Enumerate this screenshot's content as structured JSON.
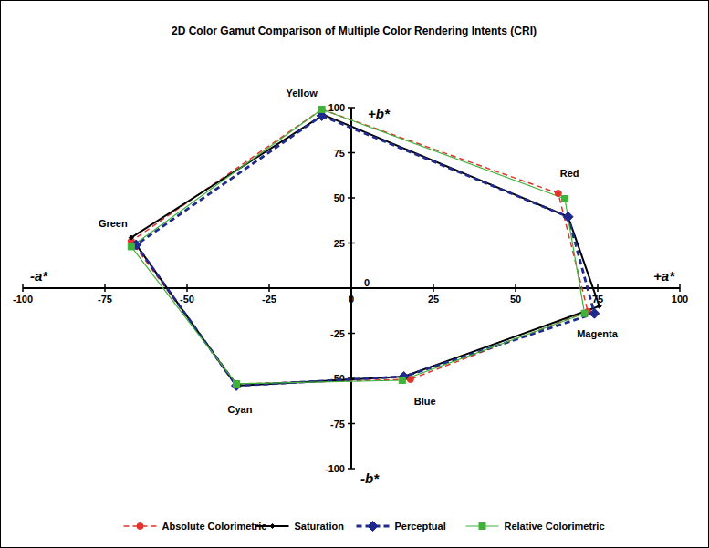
{
  "chart_data": {
    "type": "polygon",
    "title": "2D Color Gamut Comparison of Multiple Color Rendering Intents (CRI)",
    "x_label_negative": "-a*",
    "x_label_positive": "+a*",
    "y_label_positive": "+b*",
    "y_label_negative": "-b*",
    "categories": [
      "Yellow",
      "Red",
      "Magenta",
      "Blue",
      "Cyan",
      "Green"
    ],
    "series": [
      {
        "name": "Absolute Colorimetric",
        "color": "#e0342c",
        "marker": "circle",
        "line_style": "dashed",
        "x": [
          -9,
          63,
          72,
          18,
          -35,
          -67
        ],
        "values": [
          99,
          52.5,
          -13,
          -50.5,
          -53,
          26
        ]
      },
      {
        "name": "Saturation",
        "color": "#000000",
        "marker": "diamond",
        "line_style": "solid",
        "x": [
          -8.5,
          66,
          75.5,
          16,
          -35,
          -67
        ],
        "values": [
          96,
          39.5,
          -10,
          -49,
          -54,
          28
        ]
      },
      {
        "name": "Perceptual",
        "color": "#1f2a8c",
        "marker": "diamond",
        "line_style": "dashed",
        "x": [
          -9,
          66,
          74,
          16,
          -35,
          -65.5
        ],
        "values": [
          95.5,
          39.5,
          -14,
          -49,
          -54,
          24
        ]
      },
      {
        "name": "Relative Colorimetric",
        "color": "#3fb23a",
        "marker": "square",
        "line_style": "solid",
        "x": [
          -9,
          65,
          71,
          15.5,
          -35,
          -67
        ],
        "values": [
          99,
          49.5,
          -14,
          -51,
          -53,
          23
        ]
      }
    ],
    "xlim": [
      -100,
      100
    ],
    "ylim": [
      -100,
      100
    ],
    "xticks": [
      -100,
      -75,
      -50,
      -25,
      0,
      25,
      50,
      75,
      100
    ],
    "yticks": [
      -100,
      -75,
      -50,
      -25,
      0,
      25,
      50,
      75,
      100
    ],
    "grid": false,
    "legend": "bottom"
  }
}
